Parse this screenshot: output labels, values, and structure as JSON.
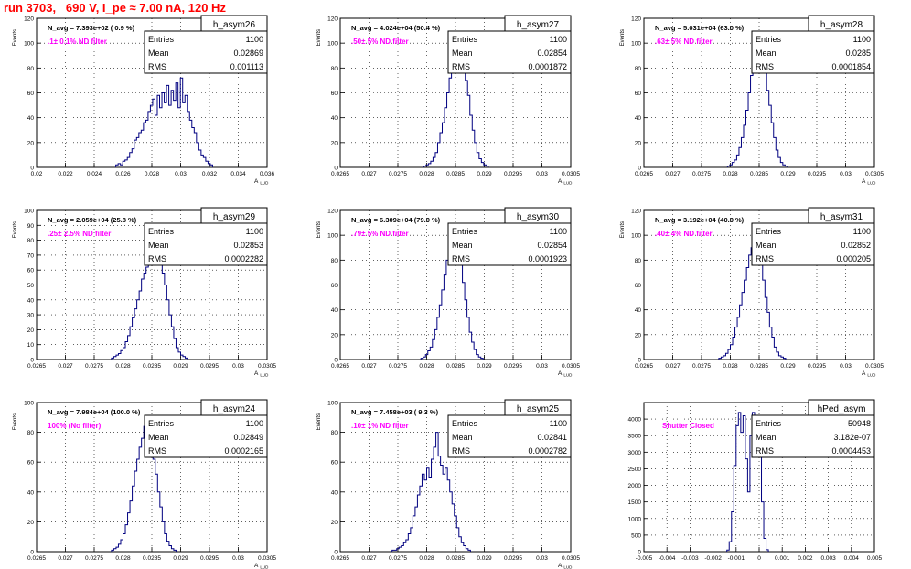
{
  "run_title": "run 3703,   690 V, I_pe ≈ 7.00 nA, 120 Hz",
  "colors": {
    "histogram": "#000080",
    "annotation": "#ff00ff",
    "run_title": "#ff0000",
    "frame": "#000000"
  },
  "chart_data": [
    {
      "type": "histogram",
      "name": "h_asym26",
      "stats": {
        "entries_label": "Entries",
        "entries": "1100",
        "mean_label": "Mean",
        "mean": "0.02869",
        "rms_label": "RMS",
        "rms": "0.001113"
      },
      "header_text": "N_avg = 7.393e+02 ( 0.9 %)",
      "filter_text": ".1± 0.1% ND filter",
      "xlabel": "A",
      "xlabel_sub": "LUD",
      "ylabel": "Events",
      "xlim": [
        0.02,
        0.036
      ],
      "ylim": [
        0,
        120
      ],
      "grid": true,
      "xticks": [
        0.02,
        0.022,
        0.024,
        0.026,
        0.028,
        0.03,
        0.032,
        0.034,
        0.036
      ],
      "xtick_labels": [
        "0.02",
        "0.022",
        "0.024",
        "0.026",
        "0.028",
        "0.03",
        "0.032",
        "0.034",
        "0.036"
      ],
      "yticks": [
        0,
        20,
        40,
        60,
        80,
        100,
        120
      ],
      "ytick_labels": [
        "0",
        "20",
        "40",
        "60",
        "80",
        "100",
        "120"
      ],
      "bin_start": 0.0255,
      "bin_width": 0.00016,
      "counts": [
        2,
        3,
        2,
        5,
        6,
        8,
        12,
        15,
        22,
        24,
        28,
        30,
        36,
        38,
        45,
        50,
        55,
        42,
        58,
        48,
        60,
        52,
        66,
        50,
        62,
        54,
        68,
        48,
        72,
        52,
        58,
        45,
        38,
        32,
        28,
        20,
        14,
        10,
        8,
        5,
        3,
        2
      ]
    },
    {
      "type": "histogram",
      "name": "h_asym27",
      "stats": {
        "entries_label": "Entries",
        "entries": "1100",
        "mean_label": "Mean",
        "mean": "0.02854",
        "rms_label": "RMS",
        "rms": "0.0001872"
      },
      "header_text": "N_avg = 4.024e+04 (50.4 %)",
      "filter_text": ".50± 5% ND filter",
      "xlabel": "A",
      "xlabel_sub": "LUD",
      "ylabel": "Events",
      "xlim": [
        0.0265,
        0.0305
      ],
      "ylim": [
        0,
        120
      ],
      "grid": true,
      "xticks": [
        0.0265,
        0.027,
        0.0275,
        0.028,
        0.0285,
        0.029,
        0.0295,
        0.03,
        0.0305
      ],
      "xtick_labels": [
        "0.0265",
        "0.027",
        "0.0275",
        "0.028",
        "0.0285",
        "0.029",
        "0.0295",
        "0.03",
        "0.0305"
      ],
      "yticks": [
        0,
        20,
        40,
        60,
        80,
        100,
        120
      ],
      "ytick_labels": [
        "0",
        "20",
        "40",
        "60",
        "80",
        "100",
        "120"
      ],
      "bin_start": 0.02795,
      "bin_width": 4e-05,
      "counts": [
        1,
        2,
        3,
        5,
        8,
        12,
        20,
        28,
        36,
        48,
        60,
        72,
        80,
        86,
        92,
        88,
        94,
        80,
        70,
        58,
        42,
        30,
        20,
        12,
        7,
        4,
        2,
        1
      ]
    },
    {
      "type": "histogram",
      "name": "h_asym28",
      "stats": {
        "entries_label": "Entries",
        "entries": "1100",
        "mean_label": "Mean",
        "mean": "0.0285",
        "rms_label": "RMS",
        "rms": "0.0001854"
      },
      "header_text": "N_avg = 5.031e+04 (63.0 %)",
      "filter_text": ".63± 5% ND filter",
      "xlabel": "A",
      "xlabel_sub": "LUD",
      "ylabel": "Events",
      "xlim": [
        0.0265,
        0.0305
      ],
      "ylim": [
        0,
        120
      ],
      "grid": true,
      "xticks": [
        0.0265,
        0.027,
        0.0275,
        0.028,
        0.0285,
        0.029,
        0.0295,
        0.03,
        0.0305
      ],
      "xtick_labels": [
        "0.0265",
        "0.027",
        "0.0275",
        "0.028",
        "0.0285",
        "0.029",
        "0.0295",
        "0.03",
        "0.0305"
      ],
      "yticks": [
        0,
        20,
        40,
        60,
        80,
        100,
        120
      ],
      "ytick_labels": [
        "0",
        "20",
        "40",
        "60",
        "80",
        "100",
        "120"
      ],
      "bin_start": 0.02795,
      "bin_width": 4e-05,
      "counts": [
        1,
        2,
        4,
        6,
        10,
        16,
        24,
        34,
        46,
        60,
        74,
        84,
        98,
        90,
        96,
        82,
        76,
        62,
        50,
        36,
        24,
        14,
        8,
        4,
        2,
        1
      ]
    },
    {
      "type": "histogram",
      "name": "h_asym29",
      "stats": {
        "entries_label": "Entries",
        "entries": "1100",
        "mean_label": "Mean",
        "mean": "0.02853",
        "rms_label": "RMS",
        "rms": "0.0002282"
      },
      "header_text": "N_avg = 2.059e+04 (25.8 %)",
      "filter_text": ".25± 2.5% ND filter",
      "xlabel": "A",
      "xlabel_sub": "LUD",
      "ylabel": "Events",
      "xlim": [
        0.0265,
        0.0305
      ],
      "ylim": [
        0,
        100
      ],
      "grid": true,
      "xticks": [
        0.0265,
        0.027,
        0.0275,
        0.028,
        0.0285,
        0.029,
        0.0295,
        0.03,
        0.0305
      ],
      "xtick_labels": [
        "0.0265",
        "0.027",
        "0.0275",
        "0.028",
        "0.0285",
        "0.029",
        "0.0295",
        "0.03",
        "0.0305"
      ],
      "yticks": [
        0,
        10,
        20,
        30,
        40,
        50,
        60,
        70,
        80,
        90,
        100
      ],
      "ytick_labels": [
        "0",
        "10",
        "20",
        "30",
        "40",
        "50",
        "60",
        "70",
        "80",
        "90",
        "100"
      ],
      "bin_start": 0.0278,
      "bin_width": 4e-05,
      "counts": [
        1,
        2,
        3,
        4,
        6,
        8,
        12,
        16,
        22,
        28,
        34,
        40,
        46,
        54,
        58,
        62,
        68,
        72,
        76,
        74,
        78,
        66,
        58,
        50,
        40,
        30,
        22,
        14,
        8,
        5,
        3,
        2,
        1
      ]
    },
    {
      "type": "histogram",
      "name": "h_asym30",
      "stats": {
        "entries_label": "Entries",
        "entries": "1100",
        "mean_label": "Mean",
        "mean": "0.02854",
        "rms_label": "RMS",
        "rms": "0.0001923"
      },
      "header_text": "N_avg = 6.309e+04 (79.0 %)",
      "filter_text": ".79± 5% ND filter",
      "xlabel": "A",
      "xlabel_sub": "LUD",
      "ylabel": "Events",
      "xlim": [
        0.0265,
        0.0305
      ],
      "ylim": [
        0,
        120
      ],
      "grid": true,
      "xticks": [
        0.0265,
        0.027,
        0.0275,
        0.028,
        0.0285,
        0.029,
        0.0295,
        0.03,
        0.0305
      ],
      "xtick_labels": [
        "0.0265",
        "0.027",
        "0.0275",
        "0.028",
        "0.0285",
        "0.029",
        "0.0295",
        "0.03",
        "0.0305"
      ],
      "yticks": [
        0,
        20,
        40,
        60,
        80,
        100,
        120
      ],
      "ytick_labels": [
        "0",
        "20",
        "40",
        "60",
        "80",
        "100",
        "120"
      ],
      "bin_start": 0.0279,
      "bin_width": 4e-05,
      "counts": [
        1,
        2,
        4,
        7,
        10,
        16,
        24,
        34,
        44,
        56,
        68,
        80,
        86,
        100,
        92,
        104,
        88,
        78,
        62,
        48,
        34,
        22,
        14,
        8,
        4,
        2,
        1
      ]
    },
    {
      "type": "histogram",
      "name": "h_asym31",
      "stats": {
        "entries_label": "Entries",
        "entries": "1100",
        "mean_label": "Mean",
        "mean": "0.02852",
        "rms_label": "RMS",
        "rms": "0.000205"
      },
      "header_text": "N_avg = 3.192e+04 (40.0 %)",
      "filter_text": ".40± 4% ND filter",
      "xlabel": "A",
      "xlabel_sub": "LUD",
      "ylabel": "Events",
      "xlim": [
        0.0265,
        0.0305
      ],
      "ylim": [
        0,
        120
      ],
      "grid": true,
      "xticks": [
        0.0265,
        0.027,
        0.0275,
        0.028,
        0.0285,
        0.029,
        0.0295,
        0.03,
        0.0305
      ],
      "xtick_labels": [
        "0.0265",
        "0.027",
        "0.0275",
        "0.028",
        "0.0285",
        "0.029",
        "0.0295",
        "0.03",
        "0.0305"
      ],
      "yticks": [
        0,
        20,
        40,
        60,
        80,
        100,
        120
      ],
      "ytick_labels": [
        "0",
        "20",
        "40",
        "60",
        "80",
        "100",
        "120"
      ],
      "bin_start": 0.0278,
      "bin_width": 4e-05,
      "counts": [
        1,
        2,
        3,
        5,
        8,
        12,
        18,
        26,
        34,
        44,
        54,
        64,
        74,
        84,
        90,
        100,
        86,
        92,
        76,
        64,
        50,
        38,
        26,
        18,
        10,
        6,
        3,
        2,
        1
      ]
    },
    {
      "type": "histogram",
      "name": "h_asym24",
      "stats": {
        "entries_label": "Entries",
        "entries": "1100",
        "mean_label": "Mean",
        "mean": "0.02849",
        "rms_label": "RMS",
        "rms": "0.0002165"
      },
      "header_text": "N_avg = 7.984e+04 (100.0 %)",
      "filter_text": "100% (No filter)",
      "xlabel": "A",
      "xlabel_sub": "LUD",
      "ylabel": "Events",
      "xlim": [
        0.0265,
        0.0305
      ],
      "ylim": [
        0,
        100
      ],
      "grid": true,
      "xticks": [
        0.0265,
        0.027,
        0.0275,
        0.028,
        0.0285,
        0.029,
        0.0295,
        0.03,
        0.0305
      ],
      "xtick_labels": [
        "0.0265",
        "0.027",
        "0.0275",
        "0.028",
        "0.0285",
        "0.029",
        "0.0295",
        "0.03",
        "0.0305"
      ],
      "yticks": [
        0,
        20,
        40,
        60,
        80,
        100
      ],
      "ytick_labels": [
        "0",
        "20",
        "40",
        "60",
        "80",
        "100"
      ],
      "bin_start": 0.0278,
      "bin_width": 4e-05,
      "counts": [
        1,
        2,
        3,
        5,
        8,
        12,
        18,
        26,
        34,
        44,
        54,
        62,
        70,
        76,
        84,
        80,
        74,
        70,
        62,
        52,
        40,
        30,
        20,
        12,
        7,
        4,
        2,
        1
      ]
    },
    {
      "type": "histogram",
      "name": "h_asym25",
      "stats": {
        "entries_label": "Entries",
        "entries": "1100",
        "mean_label": "Mean",
        "mean": "0.02841",
        "rms_label": "RMS",
        "rms": "0.0002782"
      },
      "header_text": "N_avg = 7.458e+03 ( 9.3 %)",
      "filter_text": ".10± 1% ND filter",
      "xlabel": "A",
      "xlabel_sub": "LUD",
      "ylabel": "Events",
      "xlim": [
        0.0265,
        0.0305
      ],
      "ylim": [
        0,
        100
      ],
      "grid": true,
      "xticks": [
        0.0265,
        0.027,
        0.0275,
        0.028,
        0.0285,
        0.029,
        0.0295,
        0.03,
        0.0305
      ],
      "xtick_labels": [
        "0.0265",
        "0.027",
        "0.0275",
        "0.028",
        "0.0285",
        "0.029",
        "0.0295",
        "0.03",
        "0.0305"
      ],
      "yticks": [
        0,
        20,
        40,
        60,
        80,
        100
      ],
      "ytick_labels": [
        "0",
        "20",
        "40",
        "60",
        "80",
        "100"
      ],
      "bin_start": 0.0274,
      "bin_width": 4e-05,
      "counts": [
        1,
        1,
        2,
        3,
        4,
        6,
        8,
        12,
        16,
        24,
        30,
        38,
        44,
        52,
        48,
        56,
        50,
        62,
        70,
        80,
        64,
        58,
        52,
        56,
        48,
        40,
        32,
        24,
        16,
        10,
        6,
        4,
        2,
        1
      ]
    },
    {
      "type": "histogram",
      "name": "hPed_asym",
      "stats": {
        "entries_label": "Entries",
        "entries": "50948",
        "mean_label": "Mean",
        "mean": "3.182e-07",
        "rms_label": "RMS",
        "rms": "0.0004453"
      },
      "header_text": "",
      "filter_text": "Shutter Closed",
      "xlabel": "",
      "xlabel_sub": "",
      "ylabel": "",
      "xlim": [
        -0.005,
        0.005
      ],
      "ylim": [
        0,
        4500
      ],
      "grid": true,
      "xticks": [
        -0.005,
        -0.004,
        -0.003,
        -0.002,
        -0.001,
        0,
        0.001,
        0.002,
        0.003,
        0.004,
        0.005
      ],
      "xtick_labels": [
        "-0.005",
        "-0.004",
        "-0.003",
        "-0.002",
        "-0.001",
        "0",
        "0.001",
        "0.002",
        "0.003",
        "0.004",
        "0.005"
      ],
      "yticks": [
        0,
        500,
        1000,
        1500,
        2000,
        2500,
        3000,
        3500,
        4000
      ],
      "ytick_labels": [
        "0",
        "500",
        "1000",
        "1500",
        "2000",
        "2500",
        "3000",
        "3500",
        "4000"
      ],
      "bin_start": -0.0014,
      "bin_width": 0.0001,
      "counts": [
        50,
        300,
        1200,
        2600,
        3800,
        4200,
        3600,
        4100,
        2800,
        1800,
        3500,
        4200,
        3700,
        4100,
        3000,
        1500,
        400,
        60
      ]
    }
  ]
}
